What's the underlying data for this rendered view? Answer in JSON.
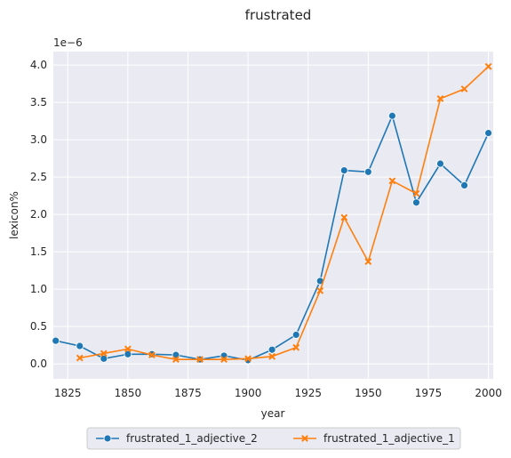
{
  "chart_data": {
    "type": "line",
    "title": "frustrated",
    "xlabel": "year",
    "ylabel": "lexicon%",
    "y_scale_label": "1e−6",
    "xlim": [
      1819,
      2002
    ],
    "ylim": [
      -0.2,
      4.18
    ],
    "x_ticks": [
      1825,
      1850,
      1875,
      1900,
      1925,
      1950,
      1975,
      2000
    ],
    "y_ticks": [
      0.0,
      0.5,
      1.0,
      1.5,
      2.0,
      2.5,
      3.0,
      3.5,
      4.0
    ],
    "y_tick_labels": [
      "0.0",
      "0.5",
      "1.0",
      "1.5",
      "2.0",
      "2.5",
      "3.0",
      "3.5",
      "4.0"
    ],
    "grid": true,
    "legend_position": "bottom-center",
    "series": [
      {
        "name": "frustrated_1_adjective_2",
        "color": "#1f77b4",
        "marker": "circle",
        "x": [
          1820,
          1830,
          1840,
          1850,
          1860,
          1870,
          1880,
          1890,
          1900,
          1910,
          1920,
          1930,
          1940,
          1950,
          1960,
          1970,
          1980,
          1990,
          2000
        ],
        "values": [
          0.31,
          0.24,
          0.07,
          0.13,
          0.13,
          0.12,
          0.06,
          0.11,
          0.05,
          0.19,
          0.39,
          1.11,
          2.59,
          2.57,
          3.32,
          2.16,
          2.68,
          2.39,
          3.09
        ]
      },
      {
        "name": "frustrated_1_adjective_1",
        "color": "#ff7f0e",
        "marker": "x",
        "x": [
          1830,
          1840,
          1850,
          1860,
          1870,
          1880,
          1890,
          1900,
          1910,
          1920,
          1930,
          1940,
          1950,
          1960,
          1970,
          1980,
          1990,
          2000
        ],
        "values": [
          0.08,
          0.14,
          0.2,
          0.12,
          0.06,
          0.06,
          0.06,
          0.07,
          0.1,
          0.22,
          0.98,
          1.96,
          1.37,
          2.45,
          2.28,
          3.55,
          3.68,
          3.98
        ]
      }
    ]
  }
}
